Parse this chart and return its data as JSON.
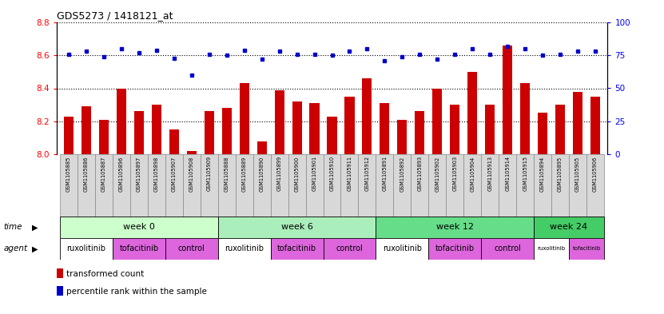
{
  "title": "GDS5273 / 1418121_at",
  "samples": [
    "GSM1105885",
    "GSM1105886",
    "GSM1105887",
    "GSM1105896",
    "GSM1105897",
    "GSM1105898",
    "GSM1105907",
    "GSM1105908",
    "GSM1105909",
    "GSM1105888",
    "GSM1105889",
    "GSM1105890",
    "GSM1105899",
    "GSM1105900",
    "GSM1105901",
    "GSM1105910",
    "GSM1105911",
    "GSM1105912",
    "GSM1105891",
    "GSM1105892",
    "GSM1105893",
    "GSM1105902",
    "GSM1105903",
    "GSM1105904",
    "GSM1105913",
    "GSM1105914",
    "GSM1105915",
    "GSM1105894",
    "GSM1105895",
    "GSM1105905",
    "GSM1105906"
  ],
  "red_values": [
    8.23,
    8.29,
    8.21,
    8.4,
    8.26,
    8.3,
    8.15,
    8.02,
    8.26,
    8.28,
    8.43,
    8.08,
    8.39,
    8.32,
    8.31,
    8.23,
    8.35,
    8.46,
    8.31,
    8.21,
    8.26,
    8.4,
    8.3,
    8.5,
    8.3,
    8.66,
    8.43,
    8.25,
    8.3,
    8.38,
    8.35
  ],
  "blue_values": [
    76,
    78,
    74,
    80,
    77,
    79,
    73,
    60,
    76,
    75,
    79,
    72,
    78,
    76,
    76,
    75,
    78,
    80,
    71,
    74,
    76,
    72,
    76,
    80,
    76,
    82,
    80,
    75,
    76,
    78,
    78
  ],
  "ylim_left": [
    8.0,
    8.8
  ],
  "ylim_right": [
    0,
    100
  ],
  "yticks_left": [
    8.0,
    8.2,
    8.4,
    8.6,
    8.8
  ],
  "yticks_right": [
    0,
    25,
    50,
    75,
    100
  ],
  "time_groups": [
    {
      "label": "week 0",
      "start": 0,
      "end": 9,
      "color": "#ccffcc"
    },
    {
      "label": "week 6",
      "start": 9,
      "end": 18,
      "color": "#aaeebb"
    },
    {
      "label": "week 12",
      "start": 18,
      "end": 27,
      "color": "#66dd88"
    },
    {
      "label": "week 24",
      "start": 27,
      "end": 31,
      "color": "#44cc66"
    }
  ],
  "agent_groups": [
    {
      "label": "ruxolitinib",
      "start": 0,
      "end": 3,
      "color": "#ffffff"
    },
    {
      "label": "tofacitinib",
      "start": 3,
      "end": 6,
      "color": "#dd66dd"
    },
    {
      "label": "control",
      "start": 6,
      "end": 9,
      "color": "#dd66dd"
    },
    {
      "label": "ruxolitinib",
      "start": 9,
      "end": 12,
      "color": "#ffffff"
    },
    {
      "label": "tofacitinib",
      "start": 12,
      "end": 15,
      "color": "#dd66dd"
    },
    {
      "label": "control",
      "start": 15,
      "end": 18,
      "color": "#dd66dd"
    },
    {
      "label": "ruxolitinib",
      "start": 18,
      "end": 21,
      "color": "#ffffff"
    },
    {
      "label": "tofacitinib",
      "start": 21,
      "end": 24,
      "color": "#dd66dd"
    },
    {
      "label": "control",
      "start": 24,
      "end": 27,
      "color": "#dd66dd"
    },
    {
      "label": "ruxolitinib",
      "start": 27,
      "end": 29,
      "color": "#ffffff"
    },
    {
      "label": "tofacitinib",
      "start": 29,
      "end": 31,
      "color": "#dd66dd"
    }
  ],
  "bar_color": "#cc0000",
  "dot_color": "#0000cc",
  "cell_bg": "#d8d8d8",
  "cell_border": "#888888"
}
